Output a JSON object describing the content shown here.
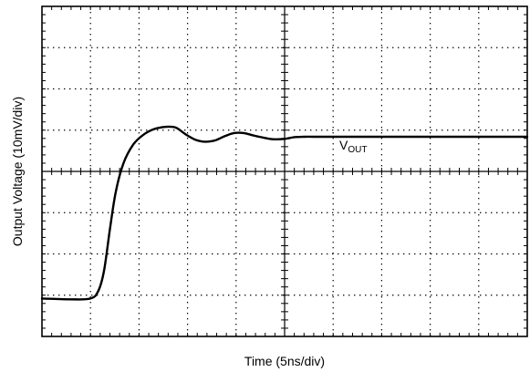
{
  "chart_data": {
    "type": "line",
    "xlabel": "Time (5ns/div)",
    "ylabel": "Output Voltage (10mV/div)",
    "x_per_div": 5,
    "x_unit": "ns",
    "y_per_div": 10,
    "y_unit": "mV",
    "xlim": [
      0,
      50
    ],
    "ylim": [
      -40,
      40
    ],
    "grid": true,
    "series": [
      {
        "name": "VOUT",
        "label_main": "V",
        "label_sub": "OUT",
        "color": "#000000",
        "x": [
          0,
          3.0,
          5.0,
          5.8,
          6.4,
          7.0,
          7.6,
          8.4,
          9.4,
          10.4,
          11.5,
          12.8,
          13.8,
          14.8,
          15.8,
          16.8,
          17.8,
          18.8,
          19.8,
          20.8,
          21.8,
          22.8,
          23.8,
          25.0,
          26.0,
          27.0,
          28.0,
          30.0,
          35.0,
          40.0,
          45.0,
          50.0
        ],
        "y": [
          -30.8,
          -31.0,
          -30.8,
          -29.0,
          -24.0,
          -14.0,
          -5.0,
          2.0,
          6.5,
          8.8,
          10.2,
          10.8,
          10.6,
          9.0,
          7.7,
          7.2,
          7.5,
          8.5,
          9.3,
          9.3,
          8.7,
          8.2,
          7.8,
          7.9,
          8.3,
          8.4,
          8.4,
          8.4,
          8.4,
          8.4,
          8.4,
          8.4
        ]
      }
    ]
  }
}
